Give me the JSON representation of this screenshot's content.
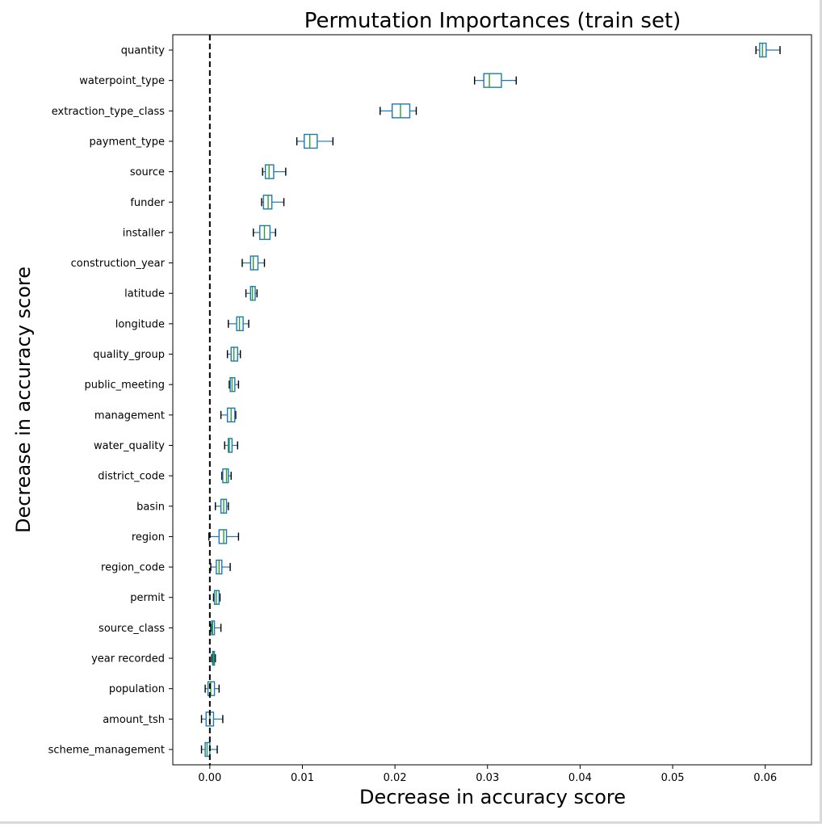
{
  "chart_data": {
    "type": "boxplot",
    "orientation": "horizontal",
    "title": "Permutation Importances (train set)",
    "xlabel": "Decrease in accuracy score",
    "ylabel": "Decrease in accuracy score",
    "xlim": [
      -0.004,
      0.065
    ],
    "x_ticks": [
      0.0,
      0.01,
      0.02,
      0.03,
      0.04,
      0.05,
      0.06
    ],
    "x_tick_labels": [
      "0.00",
      "0.01",
      "0.02",
      "0.03",
      "0.04",
      "0.05",
      "0.06"
    ],
    "reference_line": {
      "x": 0.0,
      "style": "dashed",
      "color": "#000000"
    },
    "grid": false,
    "box_color": "#1f77b4",
    "median_color": "#2ca02c",
    "features": [
      {
        "name": "quantity",
        "whislo": 0.059,
        "q1": 0.0594,
        "med": 0.0597,
        "q3": 0.0601,
        "whishi": 0.0616
      },
      {
        "name": "waterpoint_type",
        "whislo": 0.0286,
        "q1": 0.0296,
        "med": 0.0302,
        "q3": 0.0315,
        "whishi": 0.0331
      },
      {
        "name": "extraction_type_class",
        "whislo": 0.0184,
        "q1": 0.0197,
        "med": 0.0206,
        "q3": 0.0216,
        "whishi": 0.0223
      },
      {
        "name": "payment_type",
        "whislo": 0.0094,
        "q1": 0.0102,
        "med": 0.0108,
        "q3": 0.0116,
        "whishi": 0.0133
      },
      {
        "name": "source",
        "whislo": 0.0057,
        "q1": 0.006,
        "med": 0.0064,
        "q3": 0.0069,
        "whishi": 0.0082
      },
      {
        "name": "funder",
        "whislo": 0.0056,
        "q1": 0.0058,
        "med": 0.0063,
        "q3": 0.0067,
        "whishi": 0.008
      },
      {
        "name": "installer",
        "whislo": 0.0047,
        "q1": 0.0054,
        "med": 0.0059,
        "q3": 0.0065,
        "whishi": 0.0071
      },
      {
        "name": "construction_year",
        "whislo": 0.0035,
        "q1": 0.0044,
        "med": 0.0047,
        "q3": 0.0052,
        "whishi": 0.0059
      },
      {
        "name": "latitude",
        "whislo": 0.0039,
        "q1": 0.0044,
        "med": 0.0046,
        "q3": 0.0049,
        "whishi": 0.0051
      },
      {
        "name": "longitude",
        "whislo": 0.002,
        "q1": 0.0029,
        "med": 0.0032,
        "q3": 0.0036,
        "whishi": 0.0042
      },
      {
        "name": "quality_group",
        "whislo": 0.0019,
        "q1": 0.0023,
        "med": 0.0026,
        "q3": 0.003,
        "whishi": 0.0033
      },
      {
        "name": "public_meeting",
        "whislo": 0.0021,
        "q1": 0.0022,
        "med": 0.0024,
        "q3": 0.0027,
        "whishi": 0.0031
      },
      {
        "name": "management",
        "whislo": 0.0012,
        "q1": 0.0019,
        "med": 0.0023,
        "q3": 0.0027,
        "whishi": 0.0028
      },
      {
        "name": "water_quality",
        "whislo": 0.0016,
        "q1": 0.002,
        "med": 0.0021,
        "q3": 0.0024,
        "whishi": 0.003
      },
      {
        "name": "district_code",
        "whislo": 0.0013,
        "q1": 0.0014,
        "med": 0.0018,
        "q3": 0.002,
        "whishi": 0.0023
      },
      {
        "name": "basin",
        "whislo": 0.0006,
        "q1": 0.0012,
        "med": 0.0015,
        "q3": 0.0018,
        "whishi": 0.002
      },
      {
        "name": "region",
        "whislo": -0.0001,
        "q1": 0.001,
        "med": 0.0015,
        "q3": 0.0018,
        "whishi": 0.0031
      },
      {
        "name": "region_code",
        "whislo": 0.0001,
        "q1": 0.0007,
        "med": 0.001,
        "q3": 0.0013,
        "whishi": 0.0022
      },
      {
        "name": "permit",
        "whislo": 0.0004,
        "q1": 0.0005,
        "med": 0.0007,
        "q3": 0.001,
        "whishi": 0.0011
      },
      {
        "name": "source_class",
        "whislo": 0.0001,
        "q1": 0.0002,
        "med": 0.0003,
        "q3": 0.0005,
        "whishi": 0.0012
      },
      {
        "name": "year recorded",
        "whislo": 0.0002,
        "q1": 0.0003,
        "med": 0.0004,
        "q3": 0.0005,
        "whishi": 0.0006
      },
      {
        "name": "population",
        "whislo": -0.0005,
        "q1": -0.0002,
        "med": 0.0001,
        "q3": 0.0005,
        "whishi": 0.001
      },
      {
        "name": "amount_tsh",
        "whislo": -0.0009,
        "q1": -0.0004,
        "med": 0.0,
        "q3": 0.0004,
        "whishi": 0.0014
      },
      {
        "name": "scheme_management",
        "whislo": -0.0009,
        "q1": -0.0005,
        "med": -0.0003,
        "q3": 0.0,
        "whishi": 0.0008
      }
    ]
  }
}
